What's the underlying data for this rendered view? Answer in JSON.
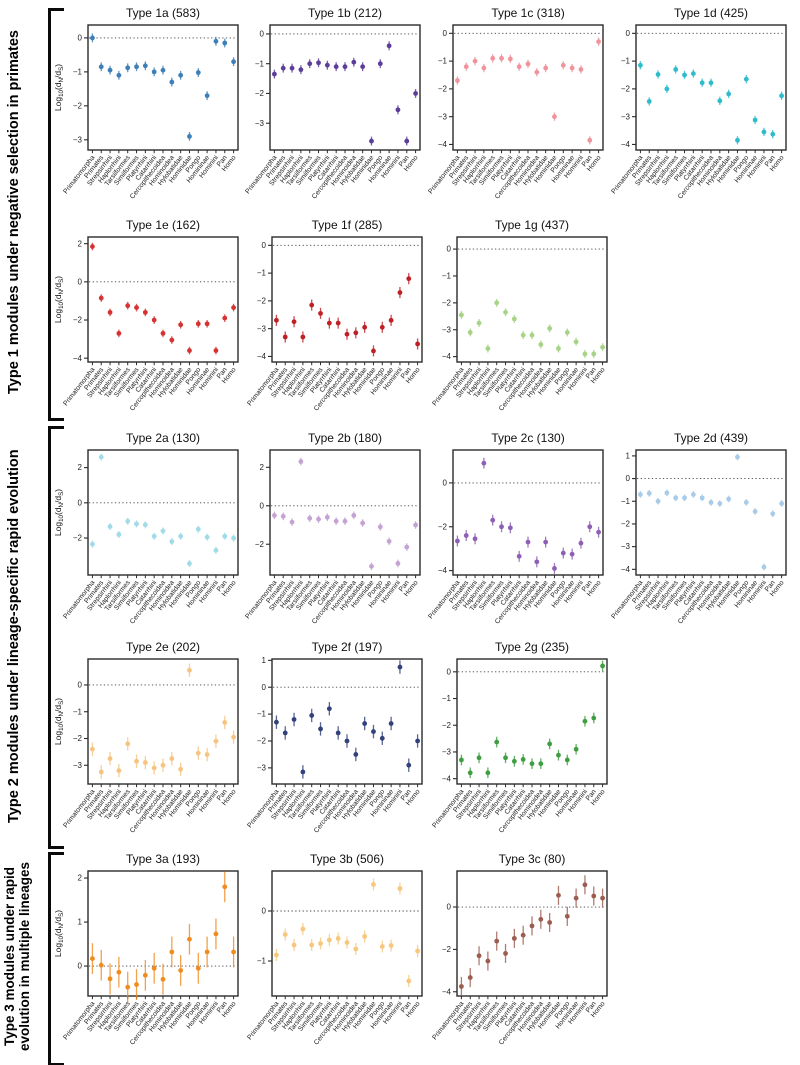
{
  "groups": [
    {
      "label": "Type 1 modules under negative selection in primates"
    },
    {
      "label": "Type 2 modules under lineage-specific rapid evolution"
    },
    {
      "label": "Type 3 modules under rapid evolution in multiple lineages"
    }
  ],
  "axis": {
    "ylabel": "Log10(dN/dS)",
    "ylabel_parts": [
      [
        "Log",
        0
      ],
      [
        "10",
        1
      ],
      [
        "(d",
        0
      ],
      [
        "N",
        1
      ],
      [
        "/d",
        0
      ],
      [
        "S",
        1
      ],
      [
        ")",
        0
      ]
    ]
  },
  "chart_data": {
    "type": "pointrange",
    "grid": false,
    "categories": [
      "Primatomorpha",
      "Primates",
      "Strepsirrhini",
      "Haplorrhini",
      "Tarsiiformes",
      "Simiiformes",
      "Platyrrhini",
      "Catarrhini",
      "Cercopithecoidea",
      "Hominoidea",
      "Hylobatidae",
      "Hominidae",
      "Pongo",
      "Homininae",
      "Hominini",
      "Pan",
      "Homo"
    ],
    "ylabel": "Log10(dN/dS)",
    "panels": [
      {
        "id": "1a",
        "title": "Type 1a (583)",
        "group": "Type 1",
        "color": "#3d7fb8",
        "err": 0.13,
        "yticks": [
          0,
          -1,
          -2,
          -3
        ],
        "ylim": [
          0.38,
          -3.3
        ],
        "values": [
          0.0,
          -0.85,
          -0.95,
          -1.1,
          -0.88,
          -0.85,
          -0.82,
          -1.0,
          -0.95,
          -1.3,
          -1.1,
          -2.9,
          -1.02,
          -1.7,
          -0.1,
          -0.15,
          -0.7
        ]
      },
      {
        "id": "1b",
        "title": "Type 1b (212)",
        "group": "Type 1",
        "color": "#5c3d99",
        "err": 0.15,
        "yticks": [
          0,
          -1,
          -2,
          -3
        ],
        "ylim": [
          0.3,
          -3.9
        ],
        "values": [
          -1.35,
          -1.15,
          -1.15,
          -1.2,
          -1.0,
          -0.97,
          -1.05,
          -1.1,
          -1.1,
          -0.95,
          -1.1,
          -3.6,
          -1.0,
          -0.4,
          -2.55,
          -3.6,
          -2.0
        ]
      },
      {
        "id": "1c",
        "title": "Type 1c (318)",
        "group": "Type 1",
        "color": "#f0949c",
        "err": 0.15,
        "yticks": [
          0,
          -1,
          -2,
          -3,
          -4
        ],
        "ylim": [
          0.3,
          -4.2
        ],
        "values": [
          -1.7,
          -1.2,
          -1.0,
          -1.25,
          -0.9,
          -0.9,
          -0.92,
          -1.2,
          -1.1,
          -1.4,
          -1.25,
          -3.0,
          -1.15,
          -1.25,
          -1.3,
          -3.85,
          -0.3
        ]
      },
      {
        "id": "1d",
        "title": "Type 1d (425)",
        "group": "Type 1",
        "color": "#2ebccd",
        "err": 0.15,
        "yticks": [
          0,
          -1,
          -2,
          -3,
          -4
        ],
        "ylim": [
          0.3,
          -4.2
        ],
        "values": [
          -1.15,
          -2.45,
          -1.48,
          -2.0,
          -1.3,
          -1.5,
          -1.45,
          -1.78,
          -1.78,
          -2.43,
          -2.18,
          -3.85,
          -1.65,
          -3.12,
          -3.55,
          -3.63,
          -2.25
        ]
      },
      {
        "id": "1e",
        "title": "Type 1e (162)",
        "group": "Type 1",
        "color": "#d63232",
        "err": 0.2,
        "yticks": [
          2,
          0,
          -2,
          -4
        ],
        "ylim": [
          2.35,
          -4.2
        ],
        "values": [
          1.85,
          -0.85,
          -1.6,
          -2.7,
          -1.25,
          -1.35,
          -1.6,
          -2.0,
          -2.7,
          -3.05,
          -2.25,
          -3.6,
          -2.2,
          -2.2,
          -3.6,
          -1.9,
          -1.35
        ]
      },
      {
        "id": "1f",
        "title": "Type 1f (285)",
        "group": "Type 1",
        "color": "#bf2026",
        "err": 0.2,
        "yticks": [
          0,
          -1,
          -2,
          -3,
          -4
        ],
        "ylim": [
          0.3,
          -4.2
        ],
        "values": [
          -2.7,
          -3.3,
          -2.75,
          -3.3,
          -2.15,
          -2.45,
          -2.8,
          -2.8,
          -3.2,
          -3.15,
          -2.95,
          -3.8,
          -2.95,
          -2.7,
          -1.7,
          -1.2,
          -3.55
        ]
      },
      {
        "id": "1g",
        "title": "Type 1g (437)",
        "group": "Type 1",
        "color": "#a6d385",
        "err": 0.15,
        "yticks": [
          0,
          -1,
          -2,
          -3,
          -4
        ],
        "ylim": [
          0.45,
          -4.2
        ],
        "values": [
          -2.45,
          -3.1,
          -2.75,
          -3.7,
          -2.0,
          -2.35,
          -2.6,
          -3.2,
          -3.2,
          -3.55,
          -2.95,
          -3.7,
          -3.1,
          -3.45,
          -3.9,
          -3.9,
          -3.65
        ]
      },
      {
        "id": "2a",
        "title": "Type 2a (130)",
        "group": "Type 2",
        "color": "#a0dbe8",
        "err": 0.2,
        "yticks": [
          2,
          0,
          -2
        ],
        "ylim": [
          3.0,
          -4.1
        ],
        "values": [
          -2.35,
          2.6,
          -1.35,
          -1.8,
          -1.05,
          -1.2,
          -1.25,
          -1.9,
          -1.6,
          -2.2,
          -1.9,
          -3.45,
          -1.5,
          -1.95,
          -2.7,
          -1.9,
          -2.0
        ]
      },
      {
        "id": "2b",
        "title": "Type 2b (180)",
        "group": "Type 2",
        "color": "#c4a3d4",
        "err": 0.2,
        "yticks": [
          2,
          0,
          -2
        ],
        "ylim": [
          2.9,
          -3.6
        ],
        "values": [
          -0.5,
          -0.55,
          -0.85,
          2.3,
          -0.65,
          -0.7,
          -0.6,
          -0.8,
          -0.8,
          -0.5,
          -0.9,
          -3.15,
          -1.1,
          -1.85,
          -3.0,
          -2.15,
          -1.0
        ]
      },
      {
        "id": "2c",
        "title": "Type 2c (130)",
        "group": "Type 2",
        "color": "#8d5fb5",
        "err": 0.25,
        "yticks": [
          0,
          -2,
          -4
        ],
        "ylim": [
          1.5,
          -4.2
        ],
        "values": [
          -2.65,
          -2.4,
          -2.55,
          0.9,
          -1.7,
          -2.0,
          -2.05,
          -3.35,
          -2.7,
          -3.6,
          -2.7,
          -3.9,
          -3.2,
          -3.25,
          -2.75,
          -2.0,
          -2.25
        ]
      },
      {
        "id": "2d",
        "title": "Type 2d (439)",
        "group": "Type 2",
        "color": "#a7cbe8",
        "err": 0.15,
        "yticks": [
          1,
          0,
          -1,
          -2,
          -3,
          -4
        ],
        "ylim": [
          1.26,
          -4.25
        ],
        "values": [
          -0.7,
          -0.65,
          -1.0,
          -0.63,
          -0.85,
          -0.85,
          -0.7,
          -0.85,
          -1.05,
          -1.1,
          -0.9,
          0.95,
          -1.05,
          -1.45,
          -3.9,
          -1.55,
          -1.1
        ]
      },
      {
        "id": "2e",
        "title": "Type 2e (202)",
        "group": "Type 2",
        "color": "#f6c480",
        "err": 0.25,
        "yticks": [
          0,
          -1,
          -2,
          -3
        ],
        "ylim": [
          0.97,
          -3.7
        ],
        "values": [
          -2.4,
          -3.25,
          -2.75,
          -3.2,
          -2.2,
          -2.85,
          -2.9,
          -3.1,
          -3.0,
          -2.75,
          -3.15,
          0.55,
          -2.55,
          -2.6,
          -2.1,
          -1.4,
          -1.95
        ]
      },
      {
        "id": "2f",
        "title": "Type 2f (197)",
        "group": "Type 2",
        "color": "#32417a",
        "err": 0.25,
        "yticks": [
          1,
          0,
          -1,
          -2,
          -3
        ],
        "ylim": [
          1.05,
          -3.6
        ],
        "values": [
          -1.3,
          -1.7,
          -1.2,
          -3.15,
          -1.05,
          -1.55,
          -0.8,
          -1.7,
          -2.0,
          -2.5,
          -1.35,
          -1.65,
          -1.9,
          -1.35,
          0.75,
          -2.9,
          -2.0
        ]
      },
      {
        "id": "2g",
        "title": "Type 2g (235)",
        "group": "Type 2",
        "color": "#3e9e41",
        "err": 0.2,
        "yticks": [
          0,
          -1,
          -2,
          -3,
          -4
        ],
        "ylim": [
          0.48,
          -4.2
        ],
        "values": [
          -3.3,
          -3.78,
          -3.22,
          -3.78,
          -2.63,
          -3.22,
          -3.35,
          -3.28,
          -3.44,
          -3.44,
          -2.7,
          -3.12,
          -3.3,
          -2.9,
          -1.85,
          -1.73,
          0.22
        ]
      },
      {
        "id": "3a",
        "title": "Type 3a (193)",
        "group": "Type 3",
        "color": "#f08c1e",
        "err": 0.35,
        "yticks": [
          2,
          1,
          0
        ],
        "ylim": [
          2.16,
          -0.68
        ],
        "values": [
          0.17,
          0.02,
          -0.29,
          -0.14,
          -0.48,
          -0.42,
          -0.21,
          -0.05,
          -0.3,
          0.32,
          -0.1,
          0.61,
          -0.05,
          0.32,
          0.73,
          1.8,
          0.32
        ]
      },
      {
        "id": "3b",
        "title": "Type 3b (506)",
        "group": "Type 3",
        "color": "#f7c77e",
        "err": 0.12,
        "yticks": [
          0,
          -1
        ],
        "ylim": [
          0.8,
          -1.7
        ],
        "values": [
          -0.88,
          -0.47,
          -0.68,
          -0.36,
          -0.68,
          -0.65,
          -0.58,
          -0.55,
          -0.63,
          -0.76,
          -0.51,
          0.53,
          -0.71,
          -0.69,
          0.45,
          -1.4,
          -0.8
        ]
      },
      {
        "id": "3c",
        "title": "Type 3c (80)",
        "group": "Type 3",
        "color": "#9c5c50",
        "err": 0.45,
        "yticks": [
          0,
          -2,
          -4
        ],
        "ylim": [
          1.7,
          -4.2
        ],
        "values": [
          -3.75,
          -3.33,
          -2.3,
          -2.55,
          -1.61,
          -2.19,
          -1.48,
          -1.33,
          -0.89,
          -0.58,
          -0.73,
          0.55,
          -0.44,
          0.42,
          1.05,
          0.52,
          0.42
        ]
      }
    ]
  }
}
